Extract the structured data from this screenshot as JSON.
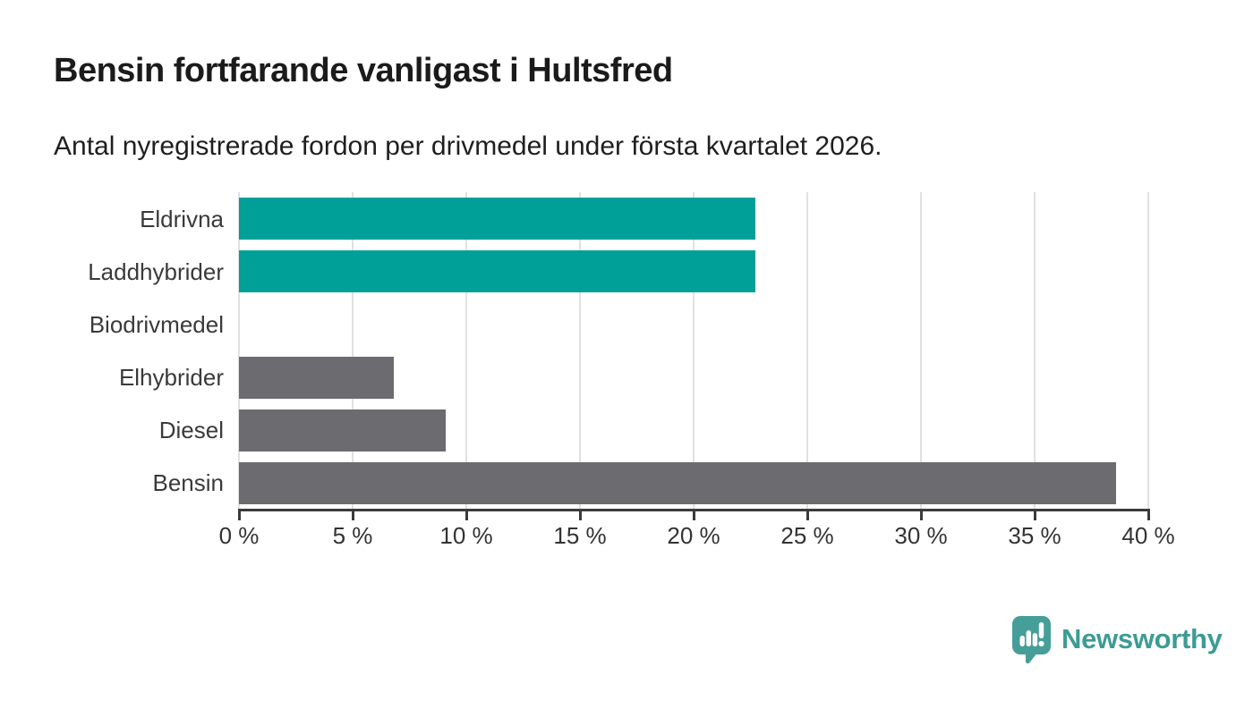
{
  "chart": {
    "title": "Bensin fortfarande vanligast i Hultsfred",
    "subtitle": "Antal nyregistrerade fordon per drivmedel under första kvartalet 2026."
  },
  "chart_data": {
    "type": "bar",
    "orientation": "horizontal",
    "title": "Bensin fortfarande vanligast i Hultsfred",
    "subtitle": "Antal nyregistrerade fordon per drivmedel under första kvartalet 2026.",
    "categories": [
      "Eldrivna",
      "Laddhybrider",
      "Biodrivmedel",
      "Elhybrider",
      "Diesel",
      "Bensin"
    ],
    "values": [
      22.7,
      22.7,
      0,
      6.8,
      9.1,
      38.6
    ],
    "unit": "%",
    "bar_colors": [
      "#00A099",
      "#00A099",
      "#6C6C70",
      "#6C6C70",
      "#6C6C70",
      "#6C6C70"
    ],
    "xlim": [
      0,
      40
    ],
    "x_ticks": [
      0,
      5,
      10,
      15,
      20,
      25,
      30,
      35,
      40
    ],
    "x_tick_labels": [
      "0 %",
      "5 %",
      "10 %",
      "15 %",
      "20 %",
      "25 %",
      "30 %",
      "35 %",
      "40 %"
    ],
    "grid": "vertical-gridlines-on",
    "legend": "none"
  },
  "colors": {
    "teal": "#00A099",
    "gray": "#6C6C70",
    "gridline": "#E1E1E4",
    "axis": "#3B3B3B",
    "brand_teal": "#3D9B95"
  },
  "footer": {
    "brand": "Newsworthy",
    "logo_icon": "newsworthy-speech-bubble-bar-chart-icon"
  }
}
